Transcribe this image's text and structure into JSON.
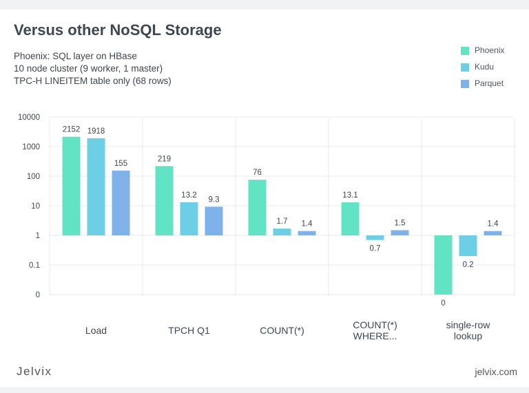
{
  "title": "Versus other NoSQL Storage",
  "subtitle_lines": [
    "Phoenix: SQL layer on HBase",
    "10 node cluster (9 worker, 1 master)",
    "TPC-H LINEITEM table only (68 rows)"
  ],
  "footer": {
    "brand": "Jelvix",
    "site": "jelvix.com"
  },
  "colors": {
    "Phoenix": "#62e3c3",
    "Kudu": "#6dcfe6",
    "Parquet": "#7fb2ea"
  },
  "chart_data": {
    "type": "bar",
    "scale": "log",
    "categories": [
      "Load",
      "TPCH Q1",
      "COUNT(*)",
      "COUNT(*)\nWHERE...",
      "single-row\nlookup"
    ],
    "series": [
      {
        "name": "Phoenix",
        "values": [
          2152,
          219,
          76,
          13.1,
          0
        ]
      },
      {
        "name": "Kudu",
        "values": [
          1918,
          13.2,
          1.7,
          0.7,
          0.2
        ]
      },
      {
        "name": "Parquet",
        "values": [
          155,
          9.3,
          1.4,
          1.5,
          1.4
        ]
      }
    ],
    "y_ticks": [
      "10000",
      "1000",
      "100",
      "10",
      "1",
      "0.1",
      "0"
    ],
    "grid": true,
    "legend_position": "top-right"
  }
}
